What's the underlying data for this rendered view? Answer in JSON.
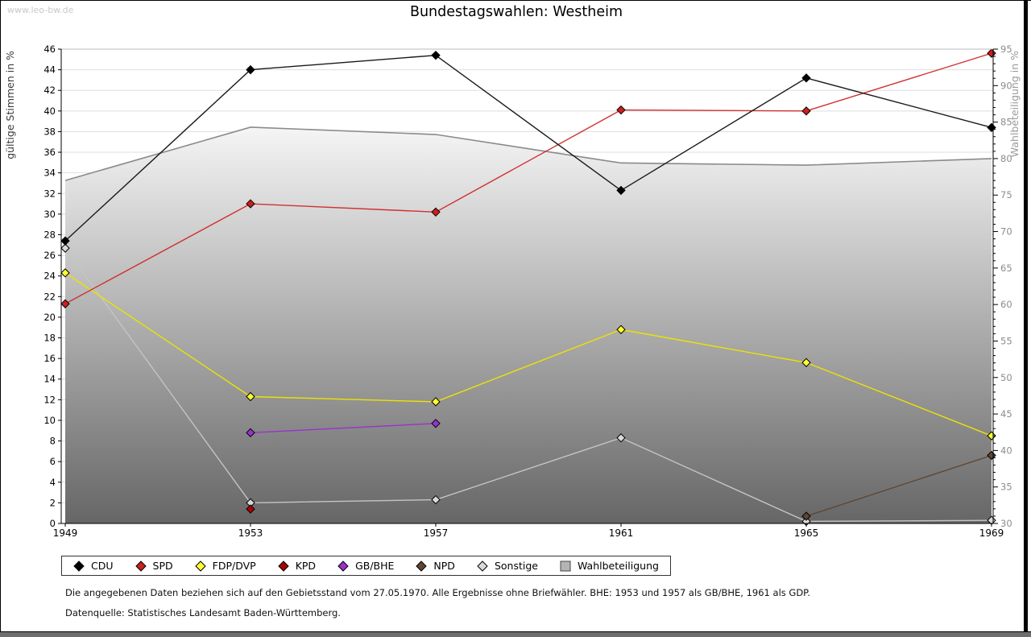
{
  "page": {
    "watermark": "www.leo-bw.de",
    "title": "Bundestagswahlen: Westheim",
    "footnote_line1": "Die angegebenen Daten beziehen sich auf den Gebietsstand vom 27.05.1970. Alle Ergebnisse ohne Briefwähler. BHE: 1953 und 1957 als GB/BHE, 1961 als GDP.",
    "footnote_line2": "Datenquelle: Statistisches Landesamt Baden-Württemberg."
  },
  "chart_data": {
    "type": "line",
    "title": "Bundestagswahlen: Westheim",
    "x": [
      1949,
      1953,
      1957,
      1961,
      1965,
      1969
    ],
    "xlabel": "",
    "ylabel_left": "gültige Stimmen in %",
    "ylabel_right": "Wahlbeteiligung in %",
    "ylim_left": [
      0,
      46
    ],
    "ytick_step_left": 2,
    "ylim_right": [
      30,
      95
    ],
    "ytick_minor_step_right": 1,
    "ytick_label_step_right": 5,
    "grid": true,
    "gridline_color": "#dedede",
    "legend_position": "bottom",
    "series": [
      {
        "name": "CDU",
        "axis": "left",
        "style": "line",
        "color": "#1a1a1a",
        "marker_fill": "#000000",
        "values": [
          27.4,
          44.0,
          45.4,
          32.3,
          43.2,
          38.4
        ]
      },
      {
        "name": "SPD",
        "axis": "left",
        "style": "line",
        "color": "#d03030",
        "marker_fill": "#cc1f1f",
        "values": [
          21.3,
          31.0,
          30.2,
          40.1,
          40.0,
          45.6
        ]
      },
      {
        "name": "FDP/DVP",
        "axis": "left",
        "style": "line",
        "color": "#ece300",
        "marker_fill": "#ffff33",
        "values": [
          24.3,
          12.3,
          11.8,
          18.8,
          15.6,
          8.5
        ]
      },
      {
        "name": "KPD",
        "axis": "left",
        "style": "line",
        "color": "#990000",
        "marker_fill": "#aa0000",
        "values": [
          null,
          1.4,
          null,
          null,
          null,
          null
        ]
      },
      {
        "name": "GB/BHE",
        "axis": "left",
        "style": "line",
        "color": "#9932cc",
        "marker_fill": "#9932cc",
        "values": [
          null,
          8.8,
          9.7,
          null,
          null,
          null
        ]
      },
      {
        "name": "NPD",
        "axis": "left",
        "style": "line",
        "color": "#5f4634",
        "marker_fill": "#5f4634",
        "values": [
          null,
          null,
          null,
          null,
          0.7,
          6.6
        ]
      },
      {
        "name": "Sonstige",
        "axis": "left",
        "style": "line",
        "color": "#c4c4c4",
        "marker_fill": "#d9d9d9",
        "values": [
          26.7,
          2.0,
          2.3,
          8.3,
          0.2,
          0.3
        ]
      },
      {
        "name": "Wahlbeteiligung",
        "axis": "right",
        "style": "area",
        "color": "#8a8a8a",
        "fill_top": "#f5f5f5",
        "fill_bottom": "#666666",
        "values": [
          77.0,
          84.3,
          83.3,
          79.4,
          79.1,
          80.0
        ]
      }
    ]
  }
}
